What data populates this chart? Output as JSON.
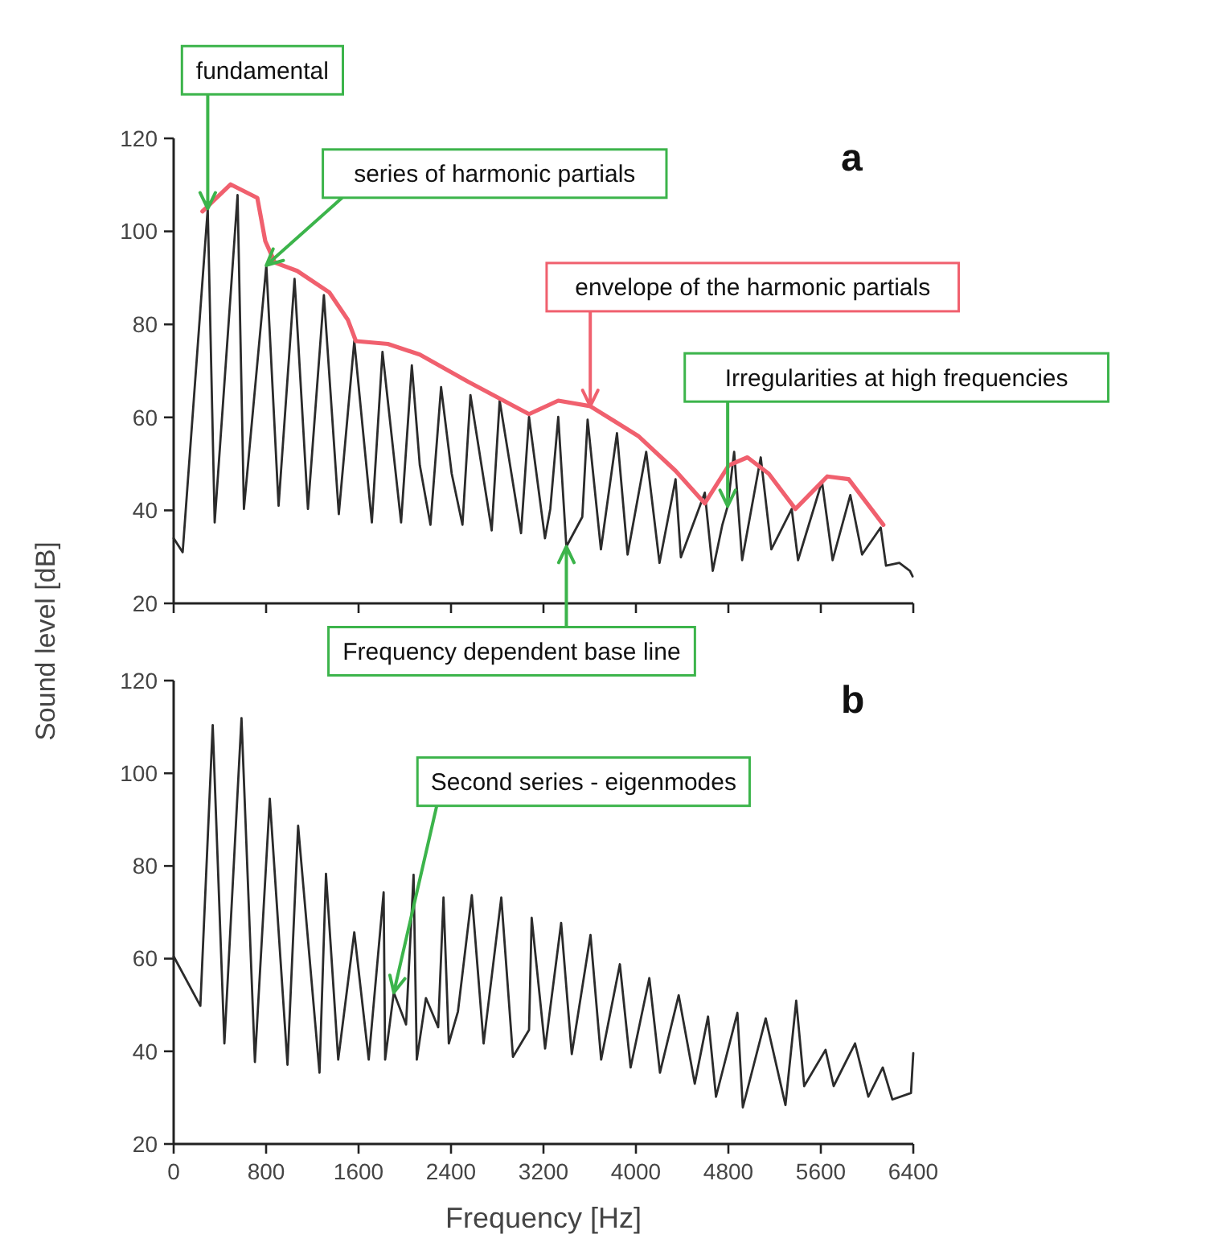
{
  "chart_data": [
    {
      "type": "line",
      "title": "a",
      "ylabel": "Sound level [dB]",
      "xlim": [
        0,
        6400
      ],
      "xticks": [
        {
          "value": 0,
          "label": null
        },
        {
          "value": 800,
          "label": null
        },
        {
          "value": 1600,
          "label": null
        },
        {
          "value": 2400,
          "label": null
        },
        {
          "value": 3200,
          "label": null
        },
        {
          "value": 4000,
          "label": null
        },
        {
          "value": 4800,
          "label": null
        },
        {
          "value": 5600,
          "label": null
        },
        {
          "value": 6400,
          "label": null
        }
      ],
      "ylim": [
        20,
        120
      ],
      "yticks": [
        20,
        40,
        60,
        80,
        100,
        120
      ],
      "tick_labels": "y",
      "line_style": "solid",
      "marker": "none",
      "grid": false,
      "series": [
        {
          "color": "#2b2b2b",
          "x": [
            0,
            78,
            295,
            355,
            553,
            608,
            802,
            908,
            1046,
            1162,
            1300,
            1429,
            1563,
            1715,
            1807,
            1968,
            2061,
            2130,
            2222,
            2314,
            2406,
            2499,
            2568,
            2752,
            2821,
            3006,
            3075,
            3213,
            3259,
            3328,
            3398,
            3536,
            3582,
            3697,
            3836,
            3928,
            4089,
            4204,
            4343,
            4389,
            4596,
            4665,
            4748,
            4794,
            4850,
            4919,
            5080,
            5172,
            5348,
            5403,
            5610,
            5702,
            5855,
            5957,
            6118,
            6164,
            6279,
            6371,
            6394
          ],
          "values": [
            34,
            31,
            104.9,
            37.4,
            107.8,
            40.3,
            92.7,
            41,
            89.8,
            40.3,
            86.3,
            39.2,
            76.4,
            37.4,
            74.1,
            37.4,
            71.2,
            49.7,
            36.9,
            66.5,
            47.9,
            36.9,
            64.8,
            35.7,
            63.6,
            35.1,
            60.1,
            34,
            40.3,
            60.1,
            32.2,
            38.6,
            59.5,
            31.6,
            56.6,
            30.5,
            52.6,
            28.7,
            46.7,
            29.9,
            43.8,
            27,
            36.9,
            40.9,
            52.6,
            29.3,
            51.4,
            31.6,
            40.3,
            29.3,
            46.2,
            29.3,
            43.3,
            30.5,
            36.3,
            28.1,
            28.7,
            27,
            25.8
          ]
        },
        {
          "color": "#f0606e",
          "x": [
            249,
            493,
            724,
            793,
            876,
            1069,
            1346,
            1507,
            1577,
            1853,
            2130,
            2545,
            3029,
            3075,
            3328,
            3605,
            4020,
            4343,
            4596,
            4804,
            4965,
            5149,
            5380,
            5656,
            5841,
            6141
          ],
          "values": [
            104.3,
            110.1,
            107.2,
            97.9,
            93.3,
            91.5,
            86.9,
            81,
            76.4,
            75.8,
            73.5,
            67.7,
            61.3,
            60.7,
            63.6,
            62.4,
            56,
            48.5,
            41.5,
            49.7,
            51.4,
            47.9,
            40.3,
            47.3,
            46.7,
            36.9
          ]
        }
      ],
      "annotations": [
        {
          "text": "fundamental",
          "x": 295,
          "y": 104.9
        },
        {
          "text": "series of harmonic partials",
          "x": 802,
          "y": 92.7
        },
        {
          "text": "envelope of the harmonic partials",
          "x": 3605,
          "y": 62.4
        },
        {
          "text": "Irregularities at high frequencies",
          "x": 4794,
          "y": 40.9
        },
        {
          "text": "Frequency dependent base line",
          "x": 3398,
          "y": 32.2
        }
      ]
    },
    {
      "type": "line",
      "title": "b",
      "xlabel": "Frequency [Hz]",
      "xlim": [
        0,
        6400
      ],
      "xticks": [
        0,
        800,
        1600,
        2400,
        3200,
        4000,
        4800,
        5600,
        6400
      ],
      "ylim": [
        20,
        120
      ],
      "yticks": [
        20,
        40,
        60,
        80,
        100,
        120
      ],
      "line_style": "solid",
      "marker": "none",
      "grid": false,
      "series": [
        {
          "color": "#2b2b2b",
          "x": [
            0,
            231,
            338,
            439,
            587,
            703,
            832,
            985,
            1077,
            1262,
            1318,
            1424,
            1563,
            1688,
            1817,
            1830,
            1905,
            2011,
            2076,
            2104,
            2183,
            2289,
            2335,
            2381,
            2460,
            2580,
            2682,
            2835,
            2936,
            3075,
            3098,
            3214,
            3353,
            3445,
            3607,
            3699,
            3861,
            3954,
            4116,
            4208,
            4370,
            4509,
            4624,
            4693,
            4878,
            4925,
            5123,
            5294,
            5387,
            5456,
            5641,
            5711,
            5896,
            6011,
            6136,
            6219,
            6380,
            6400
          ],
          "values": [
            60.5,
            49.8,
            110.4,
            41.7,
            111.9,
            37.7,
            94.5,
            37.1,
            88.7,
            35.4,
            78.3,
            38.2,
            65.7,
            38.2,
            74.3,
            38.2,
            52.7,
            45.8,
            78.1,
            38.2,
            51.5,
            45.2,
            73.2,
            41.7,
            48.6,
            73.7,
            41.7,
            73.2,
            38.8,
            44.6,
            68.8,
            40.6,
            67.7,
            39.4,
            65.1,
            38.2,
            58.8,
            36.5,
            55.8,
            35.4,
            52.1,
            33,
            47.5,
            30.2,
            48.3,
            27.9,
            47.1,
            28.4,
            50.9,
            32.5,
            40.3,
            32.5,
            41.7,
            30.2,
            36.5,
            29.6,
            31,
            39.6
          ]
        }
      ],
      "annotations": [
        {
          "text": "Second series - eigenmodes",
          "x": 1905,
          "y": 52.7
        }
      ]
    }
  ]
}
